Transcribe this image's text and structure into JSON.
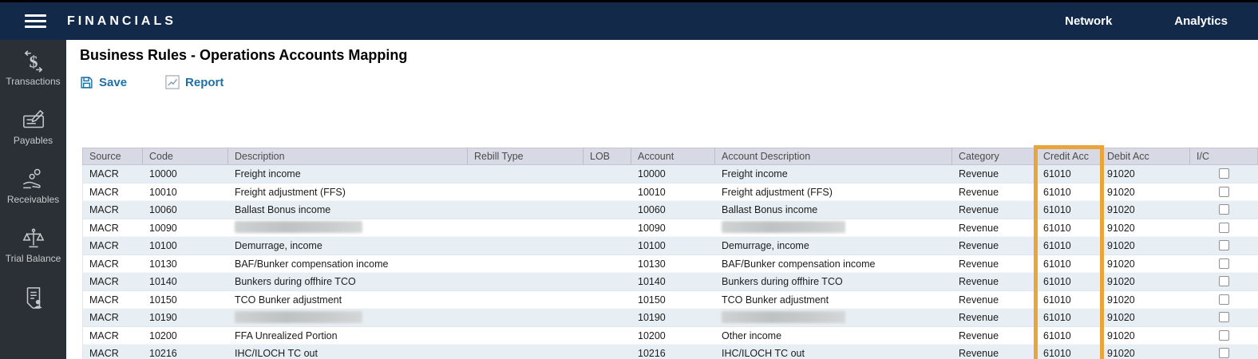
{
  "colors": {
    "navbar": "#12294A",
    "sidebar": "#2A3036",
    "accent_blue": "#2070A8",
    "highlight_orange": "#E9A43C",
    "table_header_bg": "#D7DAE4",
    "row_alt": "#E8EFF4"
  },
  "app": {
    "title": "FINANCIALS",
    "nav": [
      {
        "label": "Network"
      },
      {
        "label": "Analytics"
      }
    ]
  },
  "sidebar": {
    "items": [
      {
        "label": "Transactions",
        "icon": "transactions-icon"
      },
      {
        "label": "Payables",
        "icon": "payables-icon"
      },
      {
        "label": "Receivables",
        "icon": "receivables-icon"
      },
      {
        "label": "Trial Balance",
        "icon": "trial-balance-icon"
      },
      {
        "label": "",
        "icon": "statements-icon"
      }
    ]
  },
  "page": {
    "title": "Business Rules - Operations Accounts Mapping",
    "toolbar": {
      "save_label": "Save",
      "report_label": "Report"
    }
  },
  "table": {
    "columns": [
      "Source",
      "Code",
      "Description",
      "Rebill Type",
      "LOB",
      "Account",
      "Account Description",
      "Category",
      "Credit Acc",
      "Debit Acc",
      "I/C"
    ],
    "highlighted_column": "Credit Acc",
    "rows": [
      {
        "source": "MACR",
        "code": "10000",
        "description": "Freight income",
        "description_redacted": false,
        "rebill_type": "",
        "lob": "",
        "account": "10000",
        "account_description": "Freight income",
        "account_description_redacted": false,
        "category": "Revenue",
        "credit_acc": "61010",
        "debit_acc": "91020",
        "ic_checked": false
      },
      {
        "source": "MACR",
        "code": "10010",
        "description": "Freight adjustment (FFS)",
        "description_redacted": false,
        "rebill_type": "",
        "lob": "",
        "account": "10010",
        "account_description": "Freight adjustment (FFS)",
        "account_description_redacted": false,
        "category": "Revenue",
        "credit_acc": "61010",
        "debit_acc": "91020",
        "ic_checked": false
      },
      {
        "source": "MACR",
        "code": "10060",
        "description": "Ballast Bonus income",
        "description_redacted": false,
        "rebill_type": "",
        "lob": "",
        "account": "10060",
        "account_description": "Ballast Bonus income",
        "account_description_redacted": false,
        "category": "Revenue",
        "credit_acc": "61010",
        "debit_acc": "91020",
        "ic_checked": false
      },
      {
        "source": "MACR",
        "code": "10090",
        "description": "",
        "description_redacted": true,
        "rebill_type": "",
        "lob": "",
        "account": "10090",
        "account_description": "",
        "account_description_redacted": true,
        "category": "Revenue",
        "credit_acc": "61010",
        "debit_acc": "91020",
        "ic_checked": false
      },
      {
        "source": "MACR",
        "code": "10100",
        "description": "Demurrage, income",
        "description_redacted": false,
        "rebill_type": "",
        "lob": "",
        "account": "10100",
        "account_description": "Demurrage, income",
        "account_description_redacted": false,
        "category": "Revenue",
        "credit_acc": "61010",
        "debit_acc": "91020",
        "ic_checked": false
      },
      {
        "source": "MACR",
        "code": "10130",
        "description": "BAF/Bunker compensation income",
        "description_redacted": false,
        "rebill_type": "",
        "lob": "",
        "account": "10130",
        "account_description": "BAF/Bunker compensation income",
        "account_description_redacted": false,
        "category": "Revenue",
        "credit_acc": "61010",
        "debit_acc": "91020",
        "ic_checked": false
      },
      {
        "source": "MACR",
        "code": "10140",
        "description": "Bunkers during offhire TCO",
        "description_redacted": false,
        "rebill_type": "",
        "lob": "",
        "account": "10140",
        "account_description": "Bunkers during offhire TCO",
        "account_description_redacted": false,
        "category": "Revenue",
        "credit_acc": "61010",
        "debit_acc": "91020",
        "ic_checked": false
      },
      {
        "source": "MACR",
        "code": "10150",
        "description": "TCO Bunker adjustment",
        "description_redacted": false,
        "rebill_type": "",
        "lob": "",
        "account": "10150",
        "account_description": "TCO Bunker adjustment",
        "account_description_redacted": false,
        "category": "Revenue",
        "credit_acc": "61010",
        "debit_acc": "91020",
        "ic_checked": false
      },
      {
        "source": "MACR",
        "code": "10190",
        "description": "",
        "description_redacted": true,
        "rebill_type": "",
        "lob": "",
        "account": "10190",
        "account_description": "",
        "account_description_redacted": true,
        "category": "Revenue",
        "credit_acc": "61010",
        "debit_acc": "91020",
        "ic_checked": false
      },
      {
        "source": "MACR",
        "code": "10200",
        "description": "FFA Unrealized Portion",
        "description_redacted": false,
        "rebill_type": "",
        "lob": "",
        "account": "10200",
        "account_description": "Other income",
        "account_description_redacted": false,
        "category": "Revenue",
        "credit_acc": "61010",
        "debit_acc": "91020",
        "ic_checked": false
      },
      {
        "source": "MACR",
        "code": "10216",
        "description": "IHC/ILOCH TC out",
        "description_redacted": false,
        "rebill_type": "",
        "lob": "",
        "account": "10216",
        "account_description": "IHC/ILOCH TC out",
        "account_description_redacted": false,
        "category": "Revenue",
        "credit_acc": "61010",
        "debit_acc": "91020",
        "ic_checked": false
      }
    ]
  }
}
